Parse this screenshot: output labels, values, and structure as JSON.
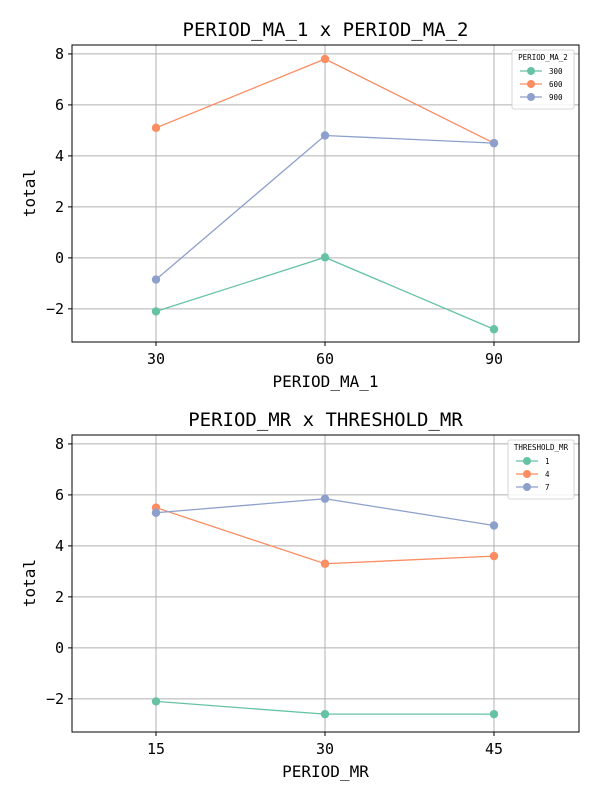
{
  "chart_data": [
    {
      "type": "line",
      "title": "PERIOD_MA_1 x PERIOD_MA_2",
      "xlabel": "PERIOD_MA_1",
      "ylabel": "total",
      "categories": [
        "30",
        "60",
        "90"
      ],
      "yticks": [
        "−2",
        "0",
        "2",
        "4",
        "6",
        "8"
      ],
      "ylim": [
        -3.3,
        8.35
      ],
      "grid": true,
      "legend": {
        "title": "PERIOD_MA_2",
        "placement": "top-right"
      },
      "series": [
        {
          "name": "300",
          "color": "#66c2a5",
          "values": [
            -2.1,
            0.02,
            -2.8
          ]
        },
        {
          "name": "600",
          "color": "#fc8d62",
          "values": [
            5.1,
            7.8,
            4.5
          ]
        },
        {
          "name": "900",
          "color": "#8da0cb",
          "values": [
            -0.85,
            4.8,
            4.5
          ]
        }
      ]
    },
    {
      "type": "line",
      "title": "PERIOD_MR x THRESHOLD_MR",
      "xlabel": "PERIOD_MR",
      "ylabel": "total",
      "categories": [
        "15",
        "30",
        "45"
      ],
      "yticks": [
        "−2",
        "0",
        "2",
        "4",
        "6",
        "8"
      ],
      "ylim": [
        -3.3,
        8.35
      ],
      "grid": true,
      "legend": {
        "title": "THRESHOLD_MR",
        "placement": "top-right"
      },
      "series": [
        {
          "name": "1",
          "color": "#66c2a5",
          "values": [
            -2.1,
            -2.6,
            -2.6
          ]
        },
        {
          "name": "4",
          "color": "#fc8d62",
          "values": [
            5.5,
            3.3,
            3.6
          ]
        },
        {
          "name": "7",
          "color": "#8da0cb",
          "values": [
            5.3,
            5.85,
            4.8
          ]
        }
      ]
    }
  ]
}
